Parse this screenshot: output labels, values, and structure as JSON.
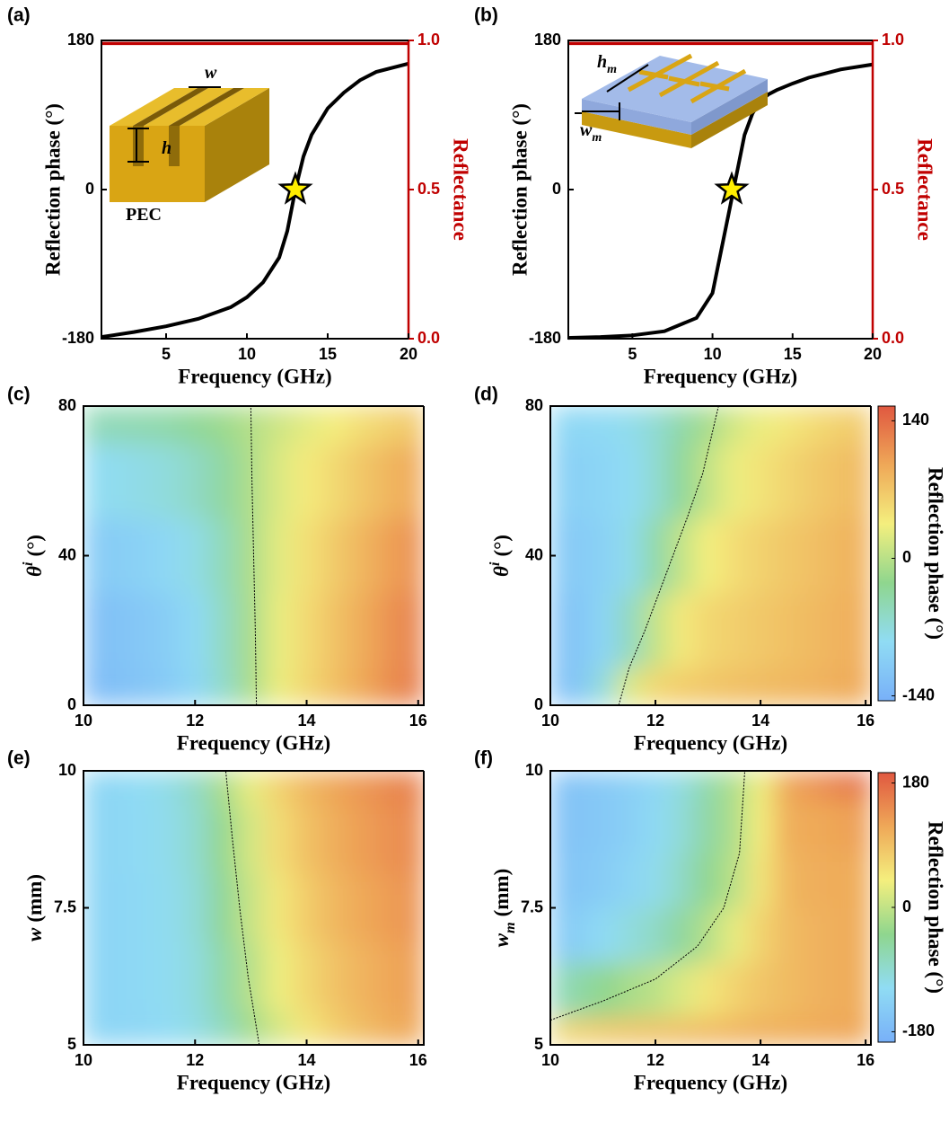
{
  "chart_data": [
    {
      "panel": "(a)",
      "type": "line",
      "xlabel": "Frequency (GHz)",
      "ylabel": "Reflection phase (°)",
      "y2label": "Reflectance",
      "x": [
        1,
        3,
        5,
        7,
        9,
        10,
        11,
        12,
        12.5,
        13,
        13.5,
        14,
        15,
        16,
        17,
        18,
        20
      ],
      "xlim": [
        1,
        20
      ],
      "xticks": [
        5,
        10,
        15,
        20
      ],
      "ylim": [
        -180,
        180
      ],
      "yticks": [
        -180,
        0,
        180
      ],
      "y2lim": [
        0,
        1
      ],
      "y2ticks": [
        {
          "value": 0,
          "label": "0.0"
        },
        {
          "value": 0.5,
          "label": "0.5"
        },
        {
          "value": 1,
          "label": "1.0"
        }
      ],
      "series": [
        {
          "color": "#000000",
          "values": [
            -178,
            -172,
            -165,
            -156,
            -142,
            -130,
            -112,
            -82,
            -50,
            0,
            40,
            66,
            98,
            117,
            132,
            142,
            152
          ]
        },
        {
          "color": "#c00000",
          "axis": "y2",
          "values": [
            0.99,
            0.99,
            0.99,
            0.99,
            0.99,
            0.99,
            0.99,
            0.99,
            0.99,
            0.99,
            0.99,
            0.99,
            0.99,
            0.99,
            0.99,
            0.99,
            0.99
          ]
        }
      ],
      "marker": {
        "x": 13,
        "y": 0,
        "color": "#ffee00"
      },
      "annotations": [
        {
          "main": "w"
        },
        {
          "main": "h"
        },
        {
          "text": "PEC"
        }
      ]
    },
    {
      "panel": "(b)",
      "type": "line",
      "xlabel": "Frequency (GHz)",
      "ylabel": "Reflection phase (°)",
      "y2label": "Reflectance",
      "x": [
        1,
        3,
        5,
        7,
        9,
        10,
        11,
        12,
        12.5,
        13,
        13.5,
        14,
        15,
        16,
        17,
        18,
        20
      ],
      "xlim": [
        1,
        20
      ],
      "xticks": [
        5,
        10,
        15,
        20
      ],
      "ylim": [
        -180,
        180
      ],
      "yticks": [
        -180,
        0,
        180
      ],
      "y2lim": [
        0,
        1
      ],
      "y2ticks": [
        {
          "value": 0,
          "label": "0.0"
        },
        {
          "value": 0.5,
          "label": "0.5"
        },
        {
          "value": 1,
          "label": "1.0"
        }
      ],
      "series": [
        {
          "color": "#000000",
          "values": [
            -179,
            -178,
            -176,
            -171,
            -155,
            -125,
            -30,
            66,
            92,
            107,
            115,
            120,
            128,
            135,
            140,
            145,
            151
          ]
        },
        {
          "color": "#c00000",
          "axis": "y2",
          "values": [
            0.99,
            0.99,
            0.99,
            0.99,
            0.99,
            0.99,
            0.99,
            0.99,
            0.99,
            0.99,
            0.99,
            0.99,
            0.99,
            0.99,
            0.99,
            0.99,
            0.99
          ]
        }
      ],
      "marker": {
        "x": 11.2,
        "y": 0,
        "color": "#ffee00"
      },
      "annotations": [
        {
          "main": "h",
          "sub": "m"
        },
        {
          "main": "w",
          "sub": "m"
        }
      ]
    },
    {
      "panel": "(c)",
      "type": "heatmap",
      "xlabel": "Frequency (GHz)",
      "ylabel": {
        "main": "θ",
        "sup": "i",
        "unit": "(°)"
      },
      "x": [
        10,
        10.5,
        11,
        11.5,
        12,
        12.5,
        13,
        13.5,
        14,
        14.5,
        15,
        15.5,
        16
      ],
      "y": [
        0,
        20,
        40,
        60,
        80
      ],
      "z": [
        [
          -130,
          -125,
          -118,
          -108,
          -92,
          -60,
          -10,
          30,
          55,
          75,
          95,
          115,
          130
        ],
        [
          -125,
          -120,
          -113,
          -104,
          -88,
          -57,
          -10,
          29,
          53,
          73,
          92,
          111,
          126
        ],
        [
          -110,
          -106,
          -100,
          -91,
          -76,
          -50,
          -8,
          25,
          48,
          66,
          84,
          101,
          115
        ],
        [
          -85,
          -82,
          -77,
          -70,
          -57,
          -37,
          -6,
          20,
          39,
          54,
          70,
          84,
          96
        ],
        [
          -50,
          -48,
          -45,
          -40,
          -30,
          -18,
          -3,
          12,
          25,
          37,
          50,
          60,
          70
        ]
      ],
      "xlim": [
        10,
        16.1
      ],
      "xticks": [
        10,
        12,
        14,
        16
      ],
      "ylim": [
        0,
        80
      ],
      "yticks": [
        0,
        40,
        80
      ],
      "zlim": [
        -145,
        155
      ],
      "colormap": [
        "#78b0f8",
        "#90dcf4",
        "#8fd68e",
        "#f4ef7e",
        "#efa858",
        "#e05840"
      ],
      "contour": {
        "x": [
          13.1,
          13.08,
          13.05,
          13.02,
          13.0
        ],
        "y": [
          0,
          20,
          40,
          60,
          80
        ]
      }
    },
    {
      "panel": "(d)",
      "type": "heatmap",
      "xlabel": "Frequency (GHz)",
      "ylabel": {
        "main": "θ",
        "sup": "i",
        "unit": "(°)"
      },
      "x": [
        10,
        10.5,
        11,
        11.5,
        12,
        12.5,
        13,
        13.5,
        14,
        14.5,
        15,
        15.5,
        16
      ],
      "y": [
        0,
        20,
        40,
        60,
        80
      ],
      "z": [
        [
          -125,
          -115,
          -70,
          20,
          55,
          65,
          70,
          75,
          78,
          82,
          85,
          90,
          95
        ],
        [
          -120,
          -115,
          -95,
          -55,
          5,
          40,
          55,
          62,
          68,
          74,
          80,
          86,
          92
        ],
        [
          -110,
          -108,
          -100,
          -80,
          -40,
          5,
          35,
          50,
          60,
          68,
          75,
          82,
          88
        ],
        [
          -100,
          -100,
          -95,
          -85,
          -65,
          -30,
          5,
          30,
          45,
          56,
          66,
          74,
          82
        ],
        [
          -90,
          -90,
          -88,
          -80,
          -65,
          -40,
          -12,
          15,
          30,
          42,
          52,
          60,
          68
        ]
      ],
      "xlim": [
        10,
        16.1
      ],
      "xticks": [
        10,
        12,
        14,
        16
      ],
      "ylim": [
        0,
        80
      ],
      "yticks": [
        0,
        40,
        80
      ],
      "zlim": [
        -145,
        155
      ],
      "colormap": [
        "#78b0f8",
        "#90dcf4",
        "#8fd68e",
        "#f4ef7e",
        "#efa858",
        "#e05840"
      ],
      "contour": {
        "x": [
          11.3,
          11.5,
          11.8,
          12.2,
          12.6,
          12.9,
          13.2
        ],
        "y": [
          0,
          10,
          20,
          35,
          50,
          62,
          80
        ]
      },
      "colorbar": {
        "label": "Reflection phase (°)",
        "ticks": [
          -140,
          0,
          140
        ]
      }
    },
    {
      "panel": "(e)",
      "type": "heatmap",
      "xlabel": "Frequency (GHz)",
      "ylabel": {
        "main": "w",
        "unit": "(mm)"
      },
      "x": [
        10,
        10.5,
        11,
        11.5,
        12,
        12.5,
        13,
        13.5,
        14,
        14.5,
        15,
        15.5,
        16
      ],
      "y": [
        5,
        6.25,
        7.5,
        8.75,
        10
      ],
      "z": [
        [
          -130,
          -128,
          -125,
          -118,
          -105,
          -75,
          -25,
          15,
          50,
          75,
          95,
          110,
          120
        ],
        [
          -130,
          -127,
          -123,
          -115,
          -100,
          -60,
          -8,
          35,
          65,
          88,
          105,
          118,
          128
        ],
        [
          -130,
          -127,
          -122,
          -113,
          -95,
          -45,
          5,
          48,
          78,
          100,
          116,
          128,
          138
        ],
        [
          -130,
          -126,
          -120,
          -110,
          -88,
          -35,
          15,
          60,
          90,
          110,
          126,
          138,
          148
        ],
        [
          -130,
          -126,
          -119,
          -107,
          -80,
          -20,
          30,
          72,
          100,
          120,
          135,
          148,
          158
        ]
      ],
      "xlim": [
        10,
        16.1
      ],
      "xticks": [
        10,
        12,
        14,
        16
      ],
      "ylim": [
        5,
        10
      ],
      "yticks": [
        5,
        7.5,
        10
      ],
      "zlim": [
        -195,
        195
      ],
      "colormap": [
        "#78b0f8",
        "#90dcf4",
        "#8fd68e",
        "#f4ef7e",
        "#efa858",
        "#e05840"
      ],
      "contour": {
        "x": [
          13.15,
          12.95,
          12.8,
          12.67,
          12.55
        ],
        "y": [
          5,
          6.25,
          7.5,
          8.75,
          10
        ]
      }
    },
    {
      "panel": "(f)",
      "type": "heatmap",
      "xlabel": "Frequency (GHz)",
      "ylabel": {
        "main": "w",
        "sub": "m",
        "unit": "(mm)"
      },
      "x": [
        10,
        10.5,
        11,
        11.5,
        12,
        12.5,
        13,
        13.5,
        14,
        14.5,
        15,
        15.5,
        16
      ],
      "y": [
        5,
        6,
        7,
        8,
        9,
        10
      ],
      "z": [
        [
          60,
          70,
          80,
          85,
          90,
          95,
          100,
          105,
          110,
          112,
          115,
          118,
          120
        ],
        [
          -80,
          -60,
          -40,
          -20,
          -5,
          20,
          50,
          70,
          85,
          95,
          105,
          110,
          115
        ],
        [
          -150,
          -140,
          -120,
          -100,
          -80,
          -50,
          -10,
          30,
          70,
          95,
          105,
          110,
          115
        ],
        [
          -160,
          -155,
          -145,
          -130,
          -110,
          -80,
          -40,
          -5,
          50,
          100,
          110,
          112,
          115
        ],
        [
          -165,
          -160,
          -150,
          -140,
          -120,
          -95,
          -55,
          -15,
          40,
          110,
          115,
          120,
          130
        ],
        [
          -165,
          -160,
          -150,
          -140,
          -125,
          -100,
          -60,
          -15,
          35,
          120,
          140,
          160,
          175
        ]
      ],
      "xlim": [
        10,
        16.1
      ],
      "xticks": [
        10,
        12,
        14,
        16
      ],
      "ylim": [
        5,
        10
      ],
      "yticks": [
        5,
        7.5,
        10
      ],
      "zlim": [
        -195,
        195
      ],
      "colormap": [
        "#78b0f8",
        "#90dcf4",
        "#8fd68e",
        "#f4ef7e",
        "#efa858",
        "#e05840"
      ],
      "contour": {
        "x": [
          10,
          11,
          12,
          12.8,
          13.3,
          13.6,
          13.7
        ],
        "y": [
          5.45,
          5.8,
          6.2,
          6.8,
          7.5,
          8.5,
          10
        ]
      },
      "colorbar": {
        "label": "Reflection phase (°)",
        "ticks": [
          -180,
          0,
          180
        ]
      }
    }
  ]
}
